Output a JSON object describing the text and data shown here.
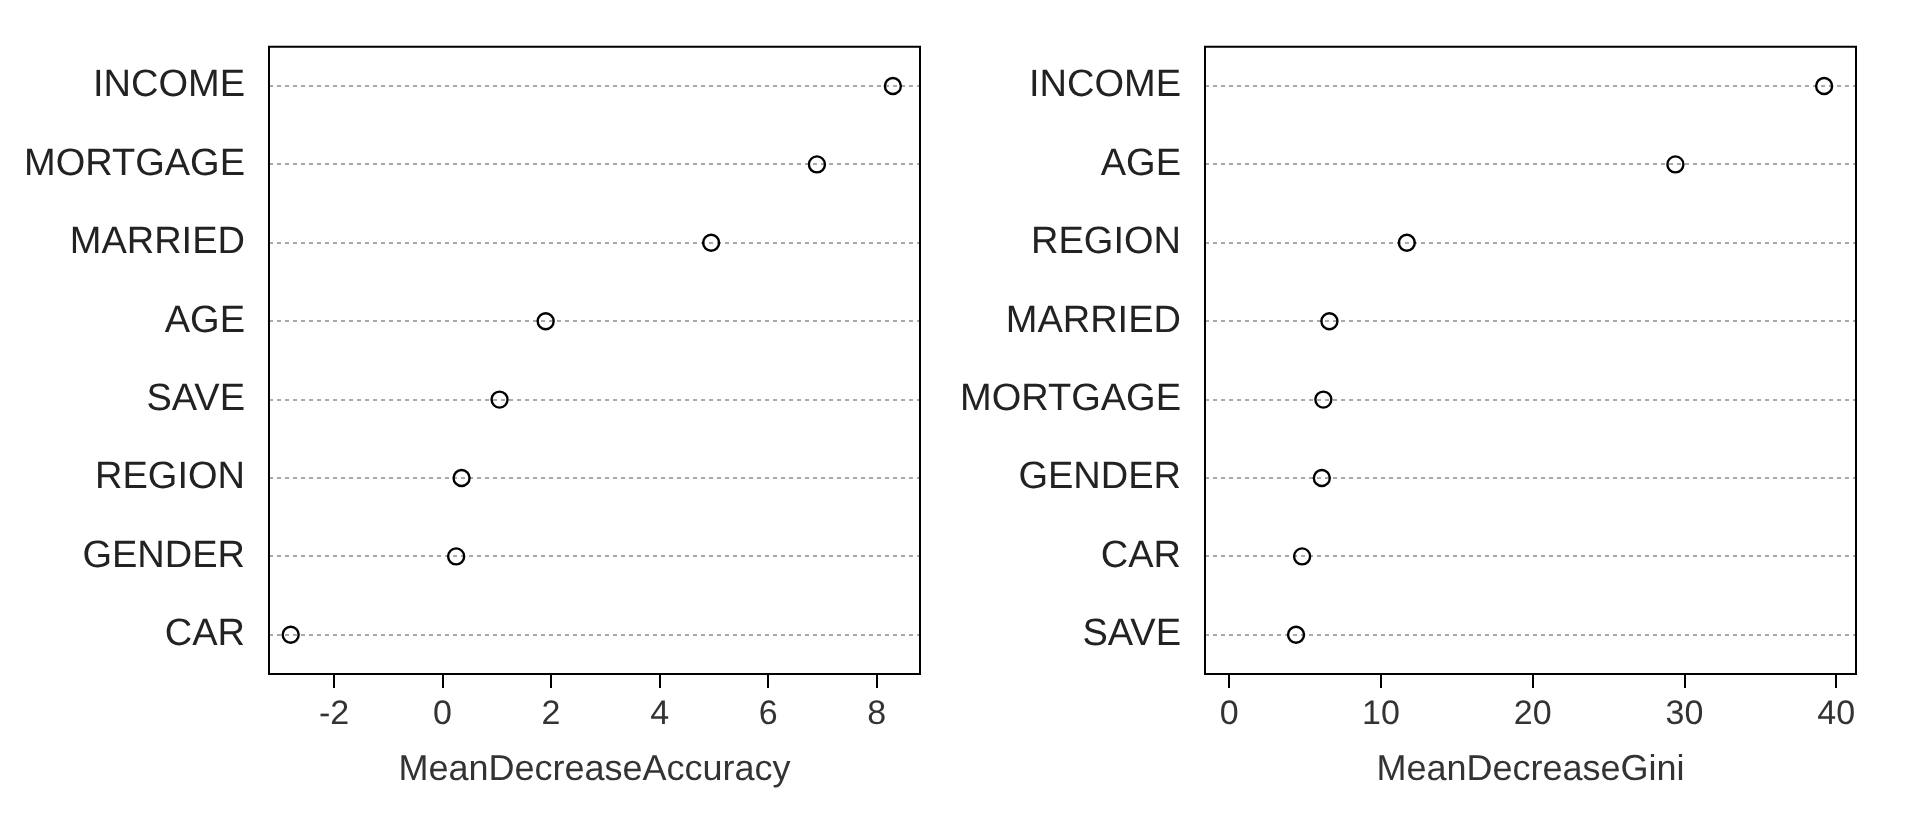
{
  "chart_data": [
    {
      "type": "scatter",
      "orientation": "horizontal",
      "categories": [
        "INCOME",
        "MORTGAGE",
        "MARRIED",
        "AGE",
        "SAVE",
        "REGION",
        "GENDER",
        "CAR"
      ],
      "values": [
        8.3,
        6.9,
        4.95,
        1.9,
        1.05,
        0.35,
        0.25,
        -2.8
      ],
      "color": "#000000",
      "marker": "circle",
      "xlabel": "MeanDecreaseAccuracy",
      "xlim": [
        -3.2,
        8.8
      ],
      "xticks": [
        -2,
        0,
        2,
        4,
        6,
        8
      ],
      "grid": "y"
    },
    {
      "type": "scatter",
      "orientation": "horizontal",
      "categories": [
        "INCOME",
        "AGE",
        "REGION",
        "MARRIED",
        "MORTGAGE",
        "GENDER",
        "CAR",
        "SAVE"
      ],
      "values": [
        39.2,
        29.4,
        11.7,
        6.6,
        6.2,
        6.1,
        4.8,
        4.4
      ],
      "color": "#000000",
      "marker": "circle",
      "xlabel": "MeanDecreaseGini",
      "xlim": [
        -1.6,
        41.3
      ],
      "xticks": [
        0,
        10,
        20,
        30,
        40
      ],
      "grid": "y"
    }
  ]
}
